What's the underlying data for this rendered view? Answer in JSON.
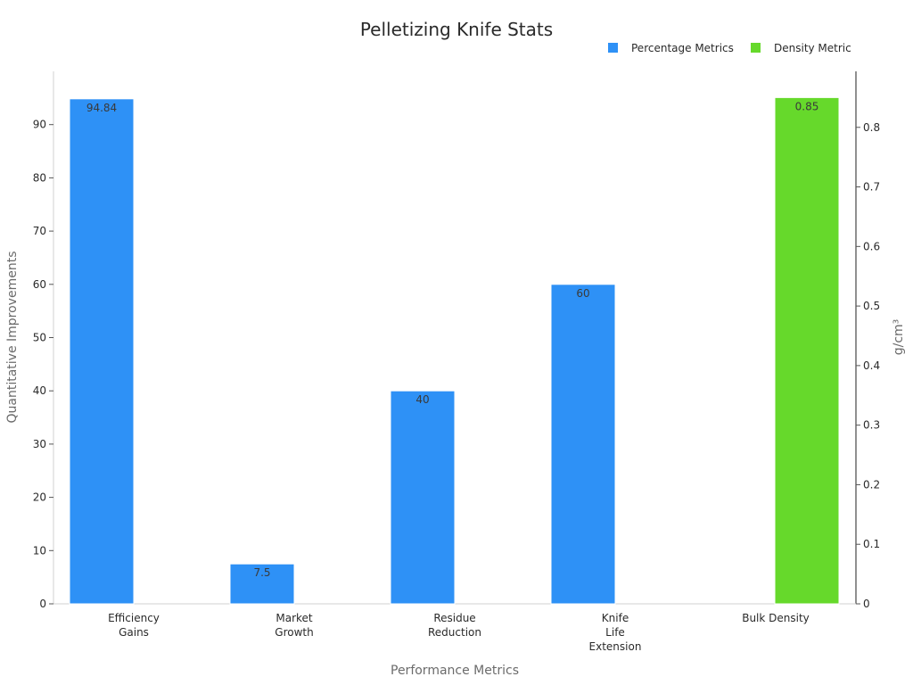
{
  "chart_data": {
    "type": "bar",
    "title": "Pelletizing Knife Stats",
    "xlabel": "Performance Metrics",
    "ylabel": "Quantitative Improvements",
    "y2label": "g/cm³",
    "ylim": [
      0,
      100
    ],
    "y2lim": [
      0,
      0.894
    ],
    "yticks": [
      0,
      10,
      20,
      30,
      40,
      50,
      60,
      70,
      80,
      90
    ],
    "y2ticks": [
      0,
      0.1,
      0.2,
      0.3,
      0.4,
      0.5,
      0.6,
      0.7,
      0.8
    ],
    "categories": [
      [
        "Efficiency",
        "Gains"
      ],
      [
        "Market",
        "Growth"
      ],
      [
        "Residue",
        "Reduction"
      ],
      [
        "Knife",
        "Life",
        "Extension"
      ],
      [
        "Bulk Density"
      ]
    ],
    "series": [
      {
        "name": "Percentage Metrics",
        "axis": "left",
        "color": "#2e91f6",
        "values": [
          94.84,
          7.5,
          40,
          60,
          null
        ],
        "labels": [
          "94.84",
          "7.5",
          "40",
          "60",
          ""
        ]
      },
      {
        "name": "Density Metric",
        "axis": "right",
        "color": "#66d92b",
        "values": [
          null,
          null,
          null,
          null,
          0.85
        ],
        "labels": [
          "",
          "",
          "",
          "",
          "0.85"
        ]
      }
    ],
    "legend": "top-right"
  }
}
